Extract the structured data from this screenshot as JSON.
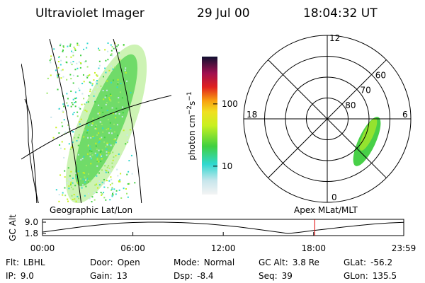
{
  "header": {
    "title": "Ultraviolet Imager",
    "date": "29 Jul 00",
    "time": "18:04:32 UT"
  },
  "colorbar": {
    "label": [
      "photon cm",
      "−2",
      "s",
      "−1"
    ],
    "scale": "log",
    "lim": [
      3.5,
      575
    ],
    "ticks": [
      {
        "value": 10,
        "label": "10"
      },
      {
        "value": 100,
        "label": "100"
      }
    ]
  },
  "polar": {
    "mlt_labels": [
      "12",
      "18",
      "6",
      "0"
    ],
    "lat_labels": [
      {
        "value": 80,
        "label": "80"
      },
      {
        "value": 70,
        "label": "70"
      },
      {
        "value": 60,
        "label": "60"
      }
    ],
    "lat_min": 50
  },
  "chart_data": {
    "type": "line",
    "ylabel": "GC Alt",
    "left_label": "Geographic Lat/Lon",
    "right_label": "Apex MLat/MLT",
    "x": [
      0,
      1,
      2,
      3,
      4,
      5,
      6,
      7,
      8,
      9,
      10,
      11,
      12,
      13,
      14,
      15,
      16,
      16.3,
      17,
      18,
      19,
      20,
      21,
      22,
      23,
      23.983
    ],
    "series": [
      {
        "color": "#000000",
        "values": [
          2.7,
          4.0,
          5.3,
          6.5,
          7.5,
          8.3,
          8.8,
          9.0,
          9.0,
          8.8,
          8.4,
          7.8,
          7.0,
          6.0,
          4.8,
          3.5,
          2.2,
          1.8,
          2.5,
          3.7,
          4.8,
          5.9,
          6.9,
          7.8,
          8.5,
          8.9
        ]
      }
    ],
    "xlim": [
      0,
      23.983
    ],
    "ylim": [
      1.8,
      9.0
    ],
    "xticks": [
      {
        "value": 0,
        "label": "00:00"
      },
      {
        "value": 6,
        "label": "06:00"
      },
      {
        "value": 12,
        "label": "12:00"
      },
      {
        "value": 18,
        "label": "18:00"
      },
      {
        "value": 23.983,
        "label": "23:59"
      }
    ],
    "yticks": [
      {
        "value": 9.0,
        "label": "9.0"
      },
      {
        "value": 1.8,
        "label": "1.8"
      }
    ],
    "marker_x": 18.076,
    "marker_color": "#e00000"
  },
  "footer": {
    "rows": [
      [
        [
          "Flt:",
          "LBHL"
        ],
        [
          "Door:",
          "Open"
        ],
        [
          "Mode:",
          "Normal"
        ],
        [
          "GC Alt:",
          "3.8 Re"
        ],
        [
          "GLat:",
          "-56.2"
        ]
      ],
      [
        [
          "IP:",
          "9.0"
        ],
        [
          "Gain:",
          "13"
        ],
        [
          "Dsp:",
          "-8.4"
        ],
        [
          "Seq:",
          "39"
        ],
        [
          "GLon:",
          "135.5"
        ]
      ]
    ]
  }
}
